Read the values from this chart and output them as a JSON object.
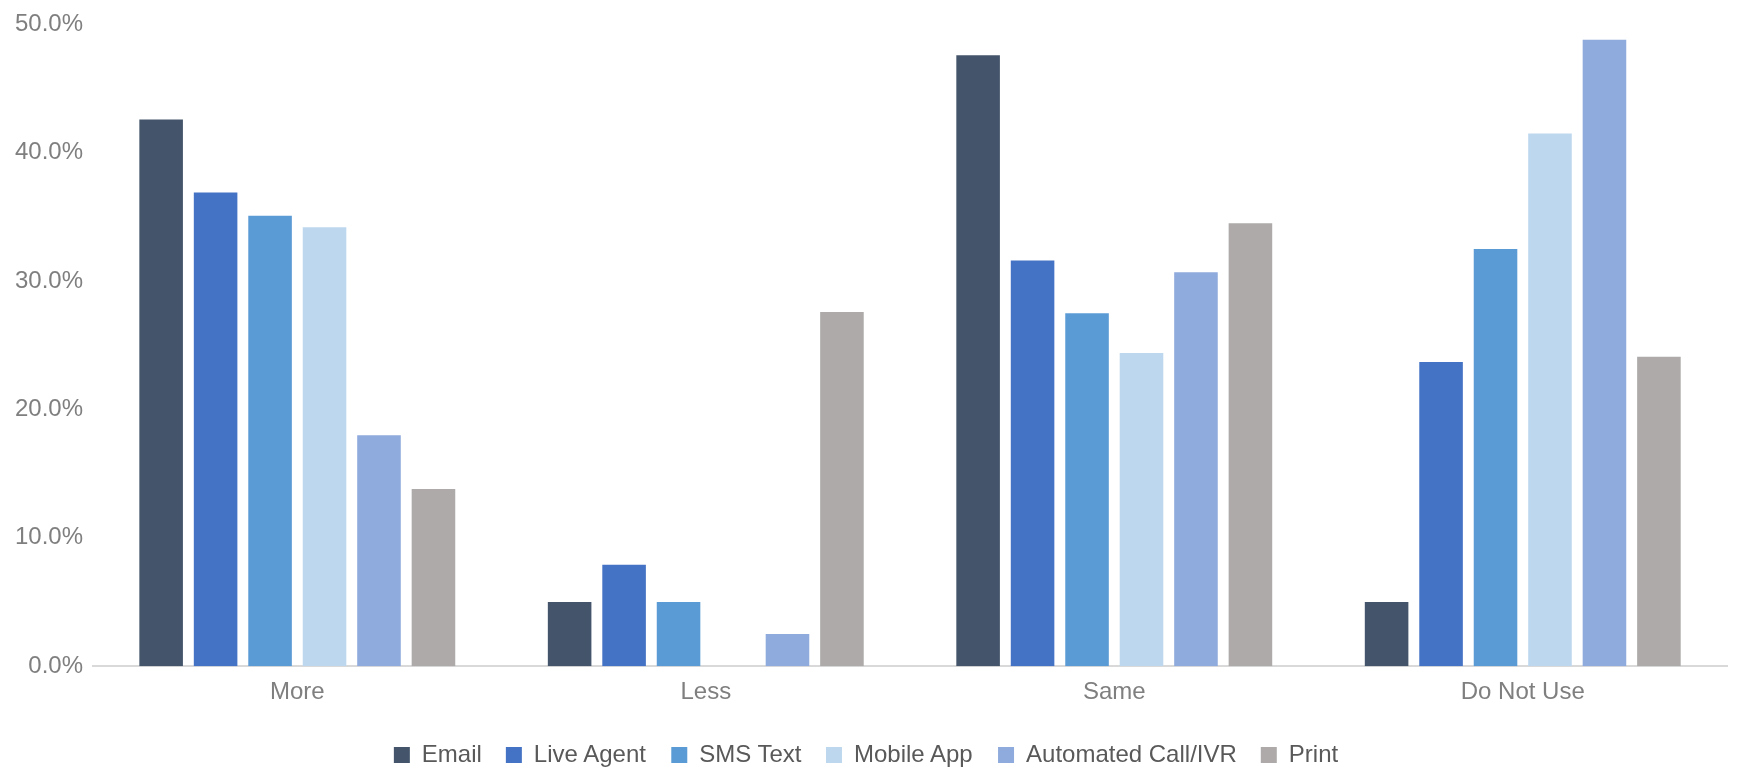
{
  "chart_data": {
    "type": "bar",
    "categories": [
      "More",
      "Less",
      "Same",
      "Do Not Use"
    ],
    "series": [
      {
        "name": "Email",
        "color": "#44546a",
        "values": [
          42.6,
          5.0,
          47.6,
          5.0
        ]
      },
      {
        "name": "Live Agent",
        "color": "#4472c4",
        "values": [
          36.9,
          7.9,
          31.6,
          23.7
        ]
      },
      {
        "name": "SMS Text",
        "color": "#5b9bd5",
        "values": [
          35.1,
          5.0,
          27.5,
          32.5
        ]
      },
      {
        "name": "Mobile App",
        "color": "#bdd7ee",
        "values": [
          34.2,
          0,
          24.4,
          41.5
        ]
      },
      {
        "name": "Automated Call/IVR",
        "color": "#8faadc",
        "values": [
          18.0,
          2.5,
          30.7,
          48.8
        ]
      },
      {
        "name": "Print",
        "color": "#aeaaaa",
        "values": [
          13.8,
          27.6,
          34.5,
          24.1
        ]
      }
    ],
    "ylim": [
      0,
      50
    ],
    "yticks": [
      {
        "value": 0,
        "label": "0.0%"
      },
      {
        "value": 10,
        "label": "10.0%"
      },
      {
        "value": 20,
        "label": "20.0%"
      },
      {
        "value": 30,
        "label": "30.0%"
      },
      {
        "value": 40,
        "label": "40.0%"
      },
      {
        "value": 50,
        "label": "50.0%"
      }
    ],
    "grid": false,
    "legend": "bottom"
  }
}
